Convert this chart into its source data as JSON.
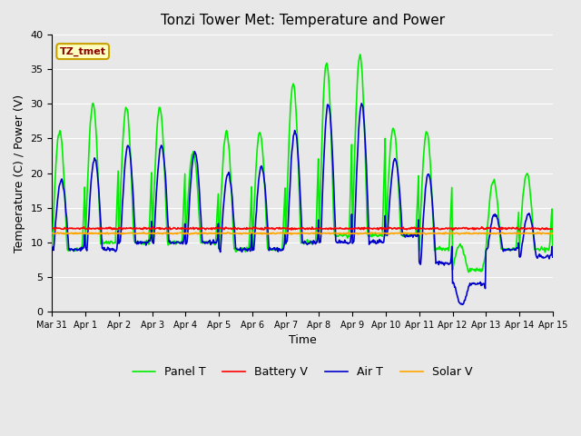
{
  "title": "Tonzi Tower Met: Temperature and Power",
  "xlabel": "Time",
  "ylabel": "Temperature (C) / Power (V)",
  "ylim": [
    0,
    40
  ],
  "yticks": [
    0,
    5,
    10,
    15,
    20,
    25,
    30,
    35,
    40
  ],
  "annotation_text": "TZ_tmet",
  "annotation_color": "#8B0000",
  "annotation_bg": "#FFFFC0",
  "annotation_border": "#C8A000",
  "bg_color": "#E8E8E8",
  "plot_bg": "#E8E8E8",
  "grid_color": "white",
  "series": {
    "panel_t": {
      "label": "Panel T",
      "color": "#00EE00",
      "linewidth": 1.2
    },
    "battery_v": {
      "label": "Battery V",
      "color": "#FF0000",
      "linewidth": 1.2
    },
    "air_t": {
      "label": "Air T",
      "color": "#0000CC",
      "linewidth": 1.2
    },
    "solar_v": {
      "label": "Solar V",
      "color": "#FFA500",
      "linewidth": 1.2
    }
  },
  "xtick_labels": [
    "Mar 31",
    "Apr 1",
    "Apr 2",
    "Apr 3",
    "Apr 4",
    "Apr 5",
    "Apr 6",
    "Apr 7",
    "Apr 8",
    "Apr 9",
    "Apr 10",
    "Apr 11",
    "Apr 12",
    "Apr 13",
    "Apr 14",
    "Apr 15"
  ],
  "panel_peaks": [
    26,
    30,
    29.5,
    29.5,
    23,
    26,
    26,
    33,
    36,
    37,
    26.5,
    26,
    9.5,
    19,
    20,
    20
  ],
  "panel_troughs": [
    9,
    10,
    10,
    10,
    10,
    9,
    9,
    10,
    11,
    11,
    11,
    9,
    6,
    9,
    9,
    9
  ],
  "air_peaks": [
    19,
    22,
    24,
    24,
    23,
    20,
    21,
    26,
    30,
    30,
    22,
    20,
    1,
    14,
    14,
    14
  ],
  "air_troughs": [
    9,
    9,
    10,
    10,
    10,
    9,
    9,
    10,
    10,
    10,
    11,
    7,
    4,
    9,
    8,
    8
  ],
  "battery_base": 12.0,
  "solar_base": 11.3,
  "figsize": [
    6.4,
    4.8
  ],
  "dpi": 100
}
